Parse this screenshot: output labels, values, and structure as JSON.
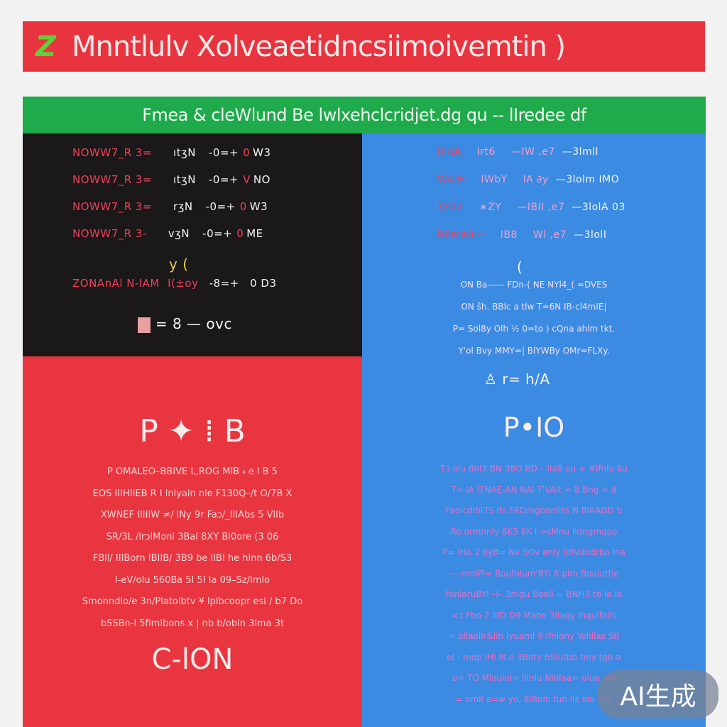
{
  "banner": {
    "logo": "Z",
    "title": "Mnntlulv Xolveaetidncsiimoivemtin )"
  },
  "header": {
    "title": "Fmea & cleWlund Be lwlxehclcridjet.dg qu  -- lIredee df"
  },
  "black_panel": {
    "rows": [
      [
        "NOWW7_R 3=",
        "ıtʒN",
        "-0=+",
        "0",
        "W3"
      ],
      [
        "NOWW7_R 3=",
        "ıtʒN",
        "-0=+",
        "V",
        "NO"
      ],
      [
        "NOWW7_R 3=",
        "rʒN",
        "-0=+",
        "0",
        "W3"
      ],
      [
        "NOWW7_R 3-",
        "vʒN",
        "-0=+",
        "0",
        "ME"
      ]
    ],
    "marks": "y   (",
    "summary": [
      "ZONAnAl N-lAM",
      "I(±oy",
      "-8=+",
      "0 D3"
    ],
    "footer": "= 8 — ovc"
  },
  "blue_panel": {
    "rows": [
      [
        "IIl/IA",
        "Irt6",
        "—IW ,e7",
        "—3lmll"
      ],
      [
        "WAIH",
        "IWbY",
        "lA ∂y",
        "—3lolm IMO"
      ],
      [
        "X/Ma",
        "∗ZY",
        "—IBII ,e7",
        "—3lolA 03"
      ],
      [
        "R8ma8—",
        "IB8",
        "Wl ,e7",
        "—3lolI"
      ]
    ],
    "mark": "(",
    "lines": [
      "ON Ba—— FDn-( NE NYl4_( =DVES",
      "ON ŝh. BBlc a tlw   T=6N IB-cl4mIE|",
      "P= Sol8y Olh ½ 0=to ) cQna ahlm tkt.",
      "Y'ol Bvy MMY=| BlYWBy OMr=FLXy."
    ],
    "icon_label": "r= h/A",
    "title": "P•IO",
    "para": [
      "Tɔ olu 8nl3 BN 38O BD – lIa8 ou + #lfnlu 8u",
      "T= lA lTNAE-AN NAl T'VAlt = 8 Bng = 8",
      "Faolcdlbl7S lfs FRDmgoanliss N 8lAADD b",
      "Ro ormnnly   8K3 8K l   =sMnu lldngmqoo",
      "P= IHo 2 8yB= Nv SOv anly lIBVdodrbo lna",
      "–—mnlPl= Boufolum'8Yl 8 plm   Boaluttle",
      "fonlaruBYl –I– 3mgu Boall = BNH3 to la lo",
      "<ɔ Fbo 2 lIID D9 Mabo 3llaqy lnqulfolls",
      "= ollaollr&lin lyuaml 9 lfniony Yolillas SB",
      "ol - mdp IHI M.o 3Bnty bSlutbb tiny tgb ə",
      "o= TO Mloulol= lllnlu Nlolaa= olua ·no",
      "= omll ə=w  yo, 8lBnln fun lIs  olo lalo"
    ]
  },
  "red_panel": {
    "title": "P ✦ ⁞ B",
    "para": [
      "P OMALEO–BBIVE L,ROG MIB ⸗ e l B 5",
      "EOS IIIHIIEB R I lnlyaln nle F130Q–/t O/7B X",
      "XWNEF IIIIIW  ≠/ lNy 9r Faɔ/_lIIAbs 5 VlIb",
      "SR/3L /lrɔlMonl 3Bal 8XY Bl0ore (3 06",
      "FBll/ IIIBorn IBIIB/ 3B9 be lIBI he hlnn 6b/S3",
      "l-eV/olu 560Ba 5l 5I Ia 09–Sz/lmlo",
      "Smonndlo/e 3n/Platolbtv ¥ lplbcoopr esi / b7 Do",
      "bSSBn-l 5fimlbons x  | nb b/obln 3lma 3t"
    ],
    "bottom": "C-lON"
  },
  "badge": {
    "label": "AI生成"
  },
  "colors": {
    "banner": "#e8343e",
    "header": "#1faa4c",
    "black_panel": "#1a1818",
    "blue_panel": "#3b8be3",
    "red_panel": "#e8353f"
  }
}
